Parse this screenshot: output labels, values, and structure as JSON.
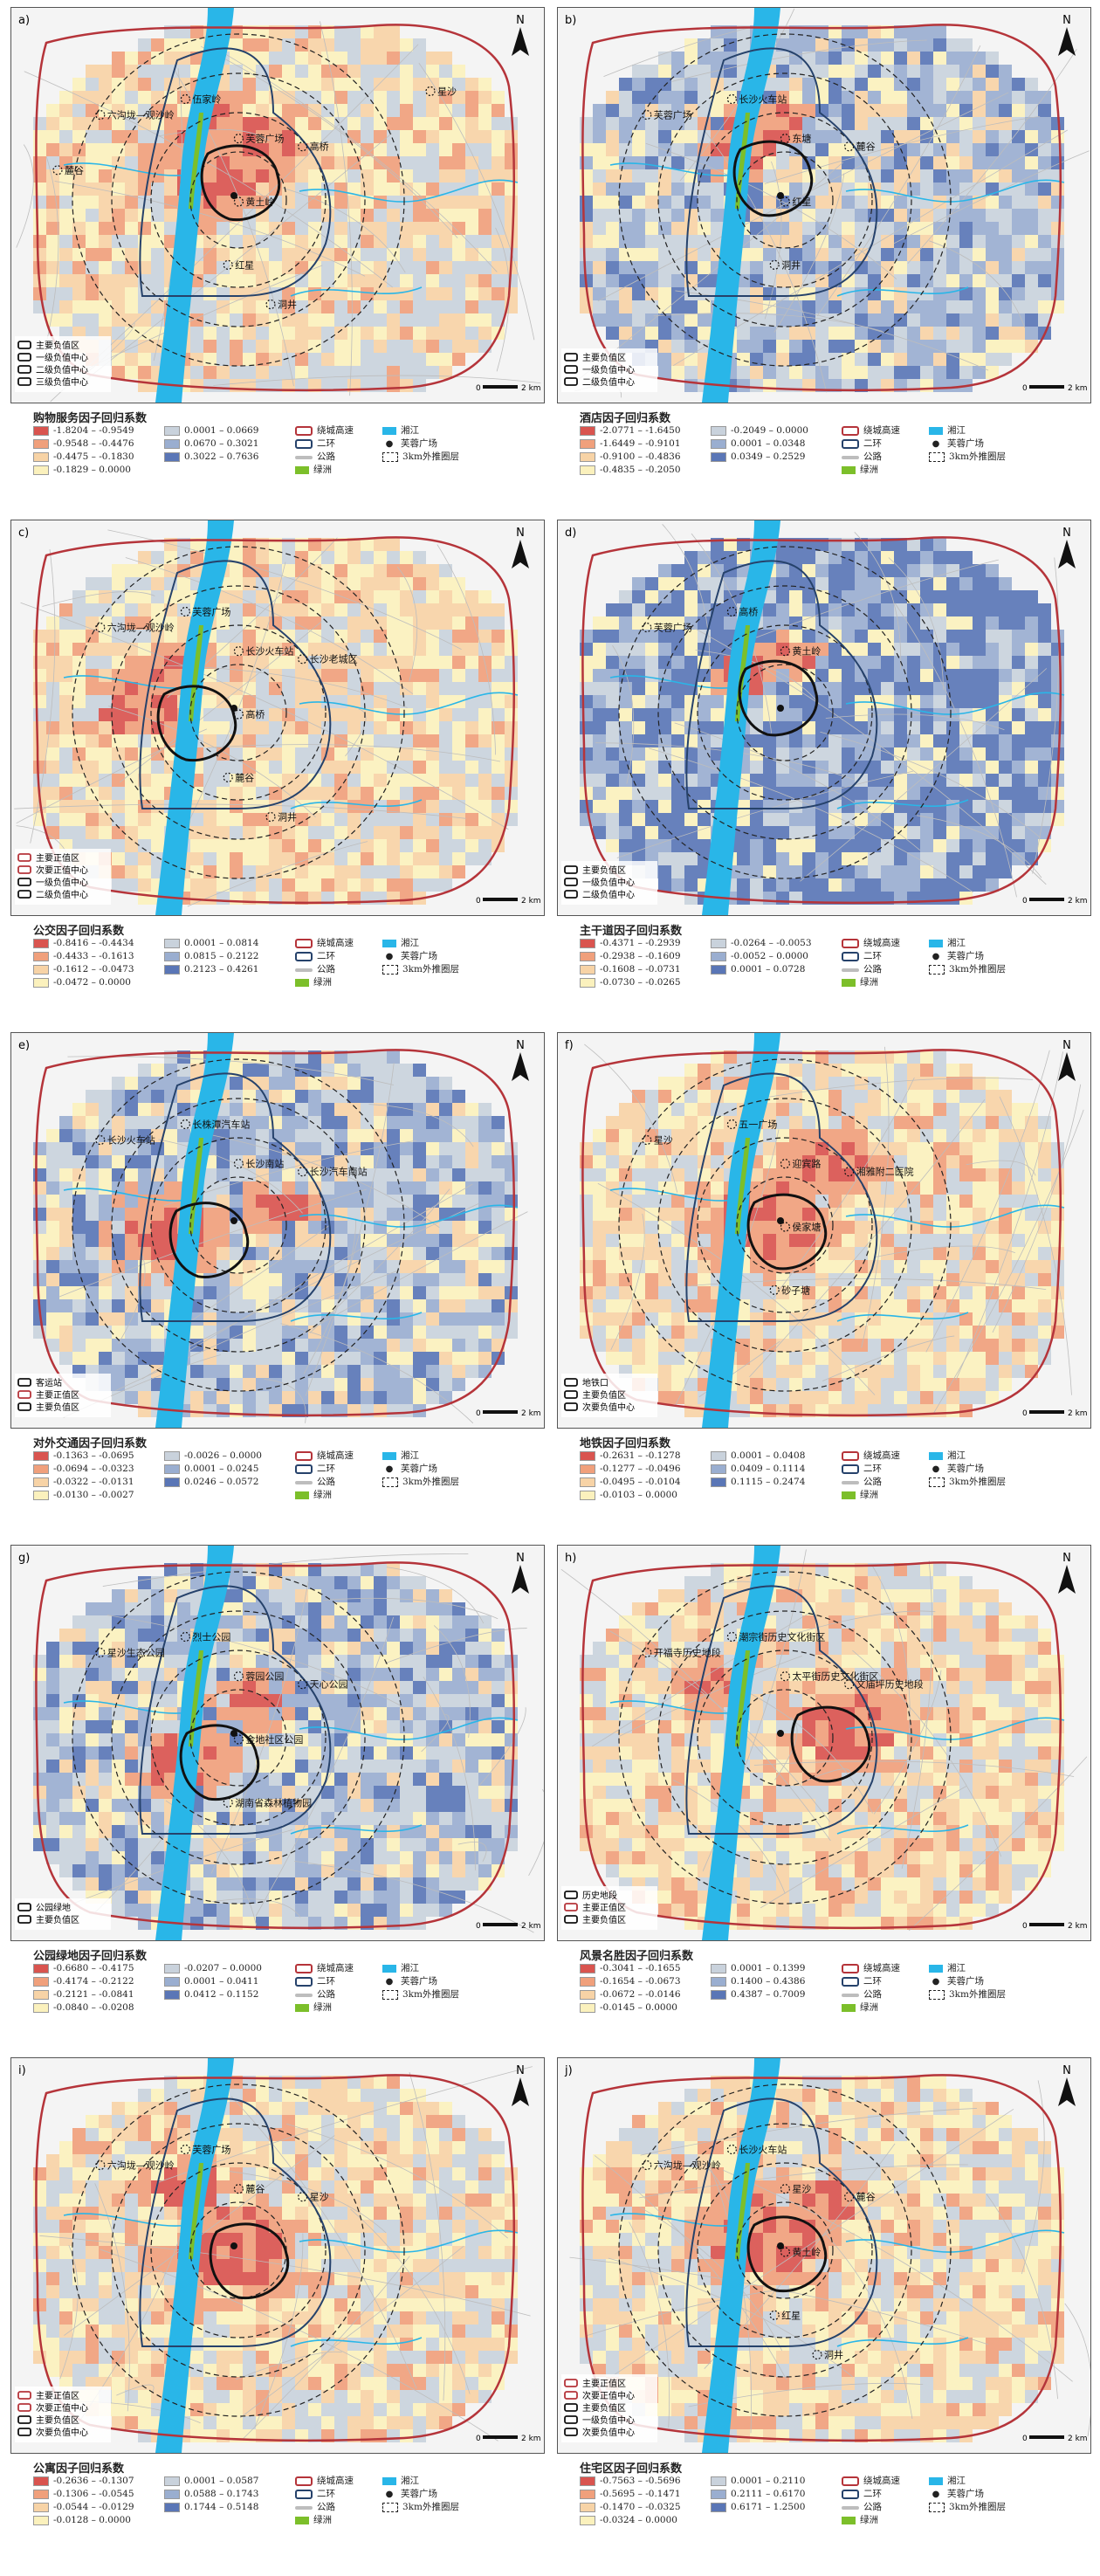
{
  "common_legend": {
    "ring_road": "绕城高速",
    "second_ring": "二环",
    "road": "公路",
    "green_island": "绿洲",
    "river": "湘江",
    "plaza": "芙蓉广场",
    "buffer": "3km外推圈层",
    "scale": "2 km",
    "scale_zero": "0",
    "north": "N"
  },
  "colors": {
    "neg1": "#d9544f",
    "neg2": "#f0a07c",
    "neg3": "#f7d3a6",
    "neg4": "#fbf1bd",
    "pos1": "#c9d2dc",
    "pos2": "#9aaed0",
    "pos3": "#5a76b6",
    "river": "#29b6e8",
    "ring": "#b5343a",
    "second_ring": "#26426b",
    "green": "#7cbf2a"
  },
  "panels": [
    {
      "id": "a",
      "letter": "a)",
      "title": "购物服务因子回归系数",
      "classes": [
        "-1.8204 – -0.9549",
        "-0.9548 – -0.4476",
        "-0.4475 – -0.1830",
        "-0.1829 – 0.0000",
        "0.0001 – 0.0669",
        "0.0670 – 0.3021",
        "0.3022 – 0.7636"
      ],
      "map_legend": [
        "主要负值区",
        "一级负值中心",
        "二级负值中心",
        "三级负值中心"
      ],
      "places": [
        "六沟垅—观沙岭",
        "伍家岭",
        "芙蓉广场",
        "高桥",
        "黄土岭",
        "红星",
        "洞井",
        "麓谷",
        "星沙"
      ]
    },
    {
      "id": "b",
      "letter": "b)",
      "title": "酒店因子回归系数",
      "classes": [
        "-2.0771 – -1.6450",
        "-1.6449 – -0.9101",
        "-0.9100 – -0.4836",
        "-0.4835 – -0.2050",
        "-0.2049 – 0.0000",
        "0.0001 – 0.0348",
        "0.0349 – 0.2529"
      ],
      "map_legend": [
        "主要负值区",
        "一级负值中心",
        "二级负值中心"
      ],
      "places": [
        "芙蓉广场",
        "长沙火车站",
        "东塘",
        "麓谷",
        "红星",
        "洞井"
      ]
    },
    {
      "id": "c",
      "letter": "c)",
      "title": "公交因子回归系数",
      "classes": [
        "-0.8416 – -0.4434",
        "-0.4433 – -0.1613",
        "-0.1612 – -0.0473",
        "-0.0472 – 0.0000",
        "0.0001 – 0.0814",
        "0.0815 – 0.2122",
        "0.2123 – 0.4261"
      ],
      "map_legend": [
        "主要正值区",
        "次要正值中心",
        "一级负值中心",
        "二级负值中心"
      ],
      "places": [
        "六沟垅—观沙岭",
        "芙蓉广场",
        "长沙火车站",
        "长沙老城区",
        "高桥",
        "麓谷",
        "洞井"
      ]
    },
    {
      "id": "d",
      "letter": "d)",
      "title": "主干道因子回归系数",
      "classes": [
        "-0.4371 – -0.2939",
        "-0.2938 – -0.1609",
        "-0.1608 – -0.0731",
        "-0.0730 – -0.0265",
        "-0.0264 – -0.0053",
        "-0.0052 – 0.0000",
        "0.0001 – 0.0728"
      ],
      "map_legend": [
        "主要负值区",
        "一级负值中心",
        "二级负值中心"
      ],
      "places": [
        "芙蓉广场",
        "高桥",
        "黄土岭"
      ]
    },
    {
      "id": "e",
      "letter": "e)",
      "title": "对外交通因子回归系数",
      "classes": [
        "-0.1363 – -0.0695",
        "-0.0694 – -0.0323",
        "-0.0322 – -0.0131",
        "-0.0130 – -0.0027",
        "-0.0026 – 0.0000",
        "0.0001 – 0.0245",
        "0.0246 – 0.0572"
      ],
      "map_legend": [
        "客运站",
        "主要正值区",
        "主要负值区"
      ],
      "places": [
        "长沙火车站",
        "长株潭汽车站",
        "长沙南站",
        "长沙汽车南站"
      ]
    },
    {
      "id": "f",
      "letter": "f)",
      "title": "地铁因子回归系数",
      "classes": [
        "-0.2631 – -0.1278",
        "-0.1277 – -0.0496",
        "-0.0495 – -0.0104",
        "-0.0103 – 0.0000",
        "0.0001 – 0.0408",
        "0.0409 – 0.1114",
        "0.1115 – 0.2474"
      ],
      "map_legend": [
        "地铁口",
        "主要负值区",
        "次要负值中心"
      ],
      "places": [
        "星沙",
        "五一广场",
        "迎宾路",
        "湘雅附二医院",
        "侯家塘",
        "砂子塘"
      ]
    },
    {
      "id": "g",
      "letter": "g)",
      "title": "公园绿地因子回归系数",
      "classes": [
        "-0.6680 – -0.4175",
        "-0.4174 – -0.2122",
        "-0.2121 – -0.0841",
        "-0.0840 – -0.0208",
        "-0.0207 – 0.0000",
        "0.0001 – 0.0411",
        "0.0412 – 0.1152"
      ],
      "map_legend": [
        "公园绿地",
        "主要负值区"
      ],
      "places": [
        "星沙生态公园",
        "烈士公园",
        "蓉园公园",
        "天心公园",
        "金地社区公园",
        "湖南省森林植物园"
      ]
    },
    {
      "id": "h",
      "letter": "h)",
      "title": "风景名胜因子回归系数",
      "classes": [
        "-0.3041 – -0.1655",
        "-0.1654 – -0.0673",
        "-0.0672 – -0.0146",
        "-0.0145 – 0.0000",
        "0.0001 – 0.1399",
        "0.1400 – 0.4386",
        "0.4387 – 0.7009"
      ],
      "map_legend": [
        "历史地段",
        "主要正值区",
        "主要负值区"
      ],
      "places": [
        "开福寺历史地段",
        "潮宗街历史文化街区",
        "太平街历史文化街区",
        "文庙坪历史地段"
      ]
    },
    {
      "id": "i",
      "letter": "i)",
      "title": "公寓因子回归系数",
      "classes": [
        "-0.2636 – -0.1307",
        "-0.1306 – -0.0545",
        "-0.0544 – -0.0129",
        "-0.0128 – 0.0000",
        "0.0001 – 0.0587",
        "0.0588 – 0.1743",
        "0.1744 – 0.5148"
      ],
      "map_legend": [
        "主要正值区",
        "次要正值中心",
        "主要负值区",
        "次要负值中心"
      ],
      "places": [
        "六沟垅—观沙岭",
        "芙蓉广场",
        "麓谷",
        "星沙"
      ]
    },
    {
      "id": "j",
      "letter": "j)",
      "title": "住宅区因子回归系数",
      "classes": [
        "-0.7563 – -0.5696",
        "-0.5695 – -0.1471",
        "-0.1470 – -0.0325",
        "-0.0324 – 0.0000",
        "0.0001 – 0.2110",
        "0.2111 – 0.6170",
        "0.6171 – 1.2500"
      ],
      "map_legend": [
        "主要正值区",
        "次要正值中心",
        "主要负值区",
        "一级负值中心",
        "次要负值中心"
      ],
      "places": [
        "六沟垅—观沙岭",
        "长沙火车站",
        "星沙",
        "麓谷",
        "黄土岭",
        "红星",
        "洞井"
      ]
    }
  ]
}
